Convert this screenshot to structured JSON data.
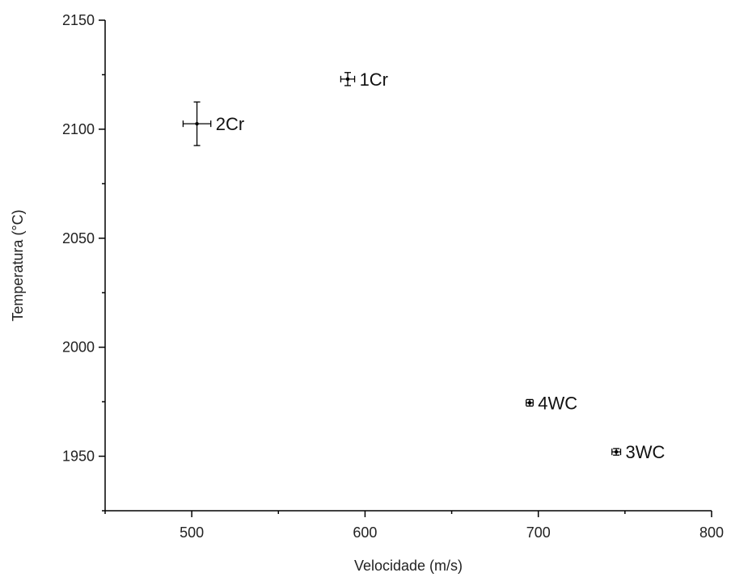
{
  "chart_data": {
    "type": "scatter",
    "title": "",
    "xlabel": "Velocidade (m/s)",
    "ylabel": "Temperatura (°C)",
    "xlim": [
      450,
      800
    ],
    "ylim": [
      1925,
      2150
    ],
    "x_ticks": [
      500,
      600,
      700,
      800
    ],
    "y_ticks": [
      1950,
      2000,
      2050,
      2100,
      2150
    ],
    "x_minor_step": 50,
    "y_minor_step": 25,
    "grid": false,
    "legend": "none",
    "points": [
      {
        "label": "1Cr",
        "x": 590,
        "y": 2123,
        "xerr": 4,
        "yerr": 3
      },
      {
        "label": "2Cr",
        "x": 503,
        "y": 2102.5,
        "xerr": 8,
        "yerr": 10
      },
      {
        "label": "4WC",
        "x": 695,
        "y": 1974.5,
        "xerr": 2,
        "yerr": 1.5
      },
      {
        "label": "3WC",
        "x": 745,
        "y": 1952,
        "xerr": 2.5,
        "yerr": 1.5
      }
    ]
  }
}
